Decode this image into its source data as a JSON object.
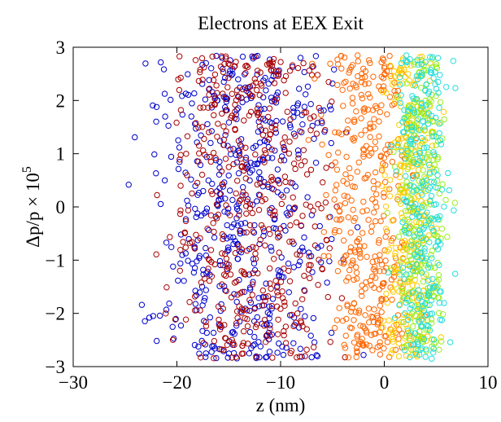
{
  "chart_data": {
    "type": "scatter",
    "title": "Electrons at EEX Exit",
    "xlabel": "z (nm)",
    "ylabel_main": "Δp/p × 10",
    "ylabel_exp": "5",
    "xlim": [
      -30,
      10
    ],
    "ylim": [
      -3,
      3
    ],
    "xticks": [
      -30,
      -20,
      -10,
      0,
      10
    ],
    "yticks": [
      -3,
      -2,
      -1,
      0,
      1,
      2,
      3
    ],
    "xtick_labels": [
      "−30",
      "−20",
      "−10",
      "0",
      "10"
    ],
    "ytick_labels": [
      "−3",
      "−2",
      "−1",
      "0",
      "1",
      "2",
      "3"
    ],
    "grid": false,
    "legend": "none",
    "marker": "open-circle",
    "series": [
      {
        "color": "#0000cc",
        "z_range": [
          -26,
          -1
        ],
        "y_range": [
          -2.85,
          2.85
        ],
        "count": 520
      },
      {
        "color": "#aa0000",
        "z_range": [
          -24,
          -2
        ],
        "y_range": [
          -2.85,
          2.85
        ],
        "count": 480
      },
      {
        "color": "#ff6600",
        "z_range": [
          -8,
          5
        ],
        "y_range": [
          -2.85,
          2.85
        ],
        "count": 380
      },
      {
        "color": "#ffcc00",
        "z_range": [
          -1,
          6
        ],
        "y_range": [
          -2.85,
          2.85
        ],
        "count": 300
      },
      {
        "color": "#99ee22",
        "z_range": [
          0,
          7
        ],
        "y_range": [
          -2.85,
          2.85
        ],
        "count": 260
      },
      {
        "color": "#22dddd",
        "z_range": [
          0,
          7.5
        ],
        "y_range": [
          -2.85,
          2.85
        ],
        "count": 260
      }
    ]
  }
}
